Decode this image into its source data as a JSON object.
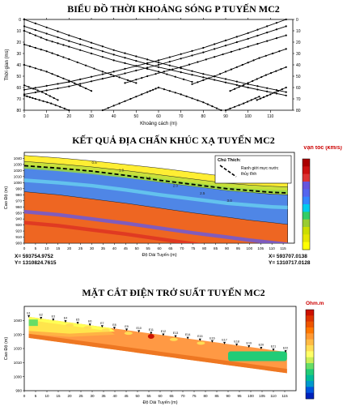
{
  "titles": {
    "travel_time": "BIỂU ĐỒ THỜI KHOẢNG SÓNG P TUYẾN MC2",
    "refraction": "KẾT QUẢ ĐỊA CHẤN KHÚC XẠ TUYẾN MC2",
    "resistivity": "MẶT CẮT ĐIỆN TRỞ SUẤT TUYẾN MC2"
  },
  "chart_data": [
    {
      "type": "line",
      "title": "BIỂU ĐỒ THỜI KHOẢNG SÓNG P TUYẾN MC2",
      "xlabel": "Khoảng cách (m)",
      "ylabel": "Thời gian (ms)",
      "xlim": [
        0,
        120
      ],
      "ylim": [
        0,
        80
      ],
      "y_reversed": true,
      "xticks": [
        "0",
        "10",
        "20",
        "30",
        "40",
        "50",
        "60",
        "70",
        "80",
        "90",
        "100",
        "110"
      ],
      "yticks": [
        "0",
        "10",
        "20",
        "30",
        "40",
        "50",
        "60",
        "70",
        "80"
      ],
      "series": [
        {
          "x": [
            0,
            20,
            40,
            60,
            80,
            100,
            117
          ],
          "y": [
            0,
            14,
            27,
            38,
            48,
            57,
            64
          ]
        },
        {
          "x": [
            0,
            20,
            40,
            60,
            80,
            100,
            117
          ],
          "y": [
            6,
            19,
            31,
            42,
            51,
            60,
            67
          ]
        },
        {
          "x": [
            0,
            10,
            20,
            40,
            60,
            75
          ],
          "y": [
            10,
            18,
            24,
            36,
            46,
            55
          ]
        },
        {
          "x": [
            0,
            10,
            20,
            35,
            50
          ],
          "y": [
            22,
            28,
            35,
            46,
            56
          ]
        },
        {
          "x": [
            0,
            10,
            20,
            30
          ],
          "y": [
            40,
            46,
            54,
            63
          ]
        },
        {
          "x": [
            0,
            8,
            15
          ],
          "y": [
            58,
            64,
            71
          ]
        },
        {
          "x": [
            117,
            100,
            80,
            60,
            40,
            20,
            0
          ],
          "y": [
            0,
            12,
            25,
            36,
            46,
            55,
            62
          ]
        },
        {
          "x": [
            117,
            100,
            80,
            60,
            40,
            20,
            0
          ],
          "y": [
            6,
            17,
            29,
            40,
            50,
            59,
            66
          ]
        },
        {
          "x": [
            117,
            100,
            85,
            70,
            55,
            45
          ],
          "y": [
            14,
            24,
            33,
            42,
            50,
            56
          ]
        },
        {
          "x": [
            117,
            105,
            95,
            85,
            75
          ],
          "y": [
            26,
            34,
            42,
            50,
            57
          ]
        },
        {
          "x": [
            117,
            108,
            100,
            92
          ],
          "y": [
            42,
            49,
            56,
            63
          ]
        },
        {
          "x": [
            117,
            110,
            104
          ],
          "y": [
            60,
            66,
            71
          ]
        },
        {
          "x": [
            20,
            12,
            5,
            0
          ],
          "y": [
            80,
            74,
            70,
            67
          ]
        },
        {
          "x": [
            35,
            45,
            55,
            60
          ],
          "y": [
            80,
            72,
            64,
            60
          ]
        },
        {
          "x": [
            60,
            70,
            80,
            88
          ],
          "y": [
            60,
            66,
            73,
            80
          ]
        },
        {
          "x": [
            90,
            98,
            105
          ],
          "y": [
            80,
            74,
            68
          ]
        }
      ]
    },
    {
      "type": "area",
      "title": "KẾT QUẢ ĐỊA CHẤN KHÚC XẠ TUYẾN MC2",
      "xlabel": "Độ Dài Tuyến (m)",
      "ylabel": "Cao Độ (m)",
      "xlim": [
        0,
        120
      ],
      "ylim": [
        900,
        1050
      ],
      "xticks": [
        "0",
        "5",
        "10",
        "15",
        "20",
        "25",
        "30",
        "35",
        "40",
        "45",
        "50",
        "55",
        "60",
        "65",
        "70",
        "75",
        "80",
        "85",
        "90",
        "95",
        "100",
        "105",
        "110",
        "115"
      ],
      "yticks": [
        "900",
        "910",
        "920",
        "930",
        "940",
        "950",
        "960",
        "970",
        "980",
        "990",
        "1000",
        "1010",
        "1020",
        "1030",
        "1040"
      ],
      "legend_title": "Vận tốc (km/s)",
      "legend_note_title": "Chú Thích:",
      "legend_note": "Ranh giới mực nước thủy tĩnh",
      "contour_labels": [
        "0.5",
        "1.0",
        "1.5",
        "2.0",
        "2.5",
        "3.0"
      ],
      "colorbar": [
        "#ffff00",
        "#e6e600",
        "#ccdd00",
        "#99cc33",
        "#33cc66",
        "#00ccee",
        "#3388ff",
        "#5566ee",
        "#6655dd",
        "#dd3333",
        "#cc1111",
        "#aa0000"
      ],
      "layers": [
        {
          "name": "0.5",
          "top": [
            1045,
            1041,
            1036,
            1030,
            1024,
            1017,
            1010,
            1006,
            1004,
            1003
          ],
          "x": [
            0,
            15,
            30,
            45,
            60,
            75,
            90,
            100,
            110,
            117
          ]
        },
        {
          "name": "1.0",
          "top": [
            1035,
            1031,
            1026,
            1020,
            1013,
            1006,
            999,
            996,
            994,
            993
          ],
          "x": [
            0,
            15,
            30,
            45,
            60,
            75,
            90,
            100,
            110,
            117
          ]
        },
        {
          "name": "2.0",
          "top": [
            1025,
            1021,
            1016,
            1009,
            1001,
            994,
            987,
            984,
            981,
            980
          ],
          "x": [
            0,
            15,
            30,
            45,
            60,
            75,
            90,
            100,
            110,
            117
          ]
        },
        {
          "name": "3.0",
          "top": [
            985,
            980,
            973,
            966,
            958,
            950,
            943,
            938,
            934,
            931
          ],
          "x": [
            0,
            15,
            30,
            45,
            60,
            75,
            90,
            100,
            110,
            117
          ]
        }
      ],
      "water_table": {
        "x": [
          0,
          15,
          30,
          45,
          60,
          75,
          90,
          100,
          110,
          117
        ],
        "y": [
          1028,
          1024,
          1019,
          1012,
          1004,
          997,
          990,
          987,
          984,
          983
        ]
      },
      "coords": {
        "left": [
          "X= 593754.9752",
          "Y= 1310824.7615"
        ],
        "right": [
          "X= 593707.0138",
          "Y= 1310717.0128"
        ]
      }
    },
    {
      "type": "heatmap",
      "title": "MẶT CẮT ĐIỆN TRỞ SUẤT TUYẾN MC2",
      "xlabel": "Độ Dài Tuyến (m)",
      "ylabel": "Cao Độ (m)",
      "xlim": [
        0,
        120
      ],
      "ylim": [
        990,
        1050
      ],
      "xticks": [
        "0",
        "5",
        "10",
        "15",
        "20",
        "25",
        "30",
        "35",
        "40",
        "45",
        "50",
        "55",
        "60",
        "65",
        "70",
        "75",
        "80",
        "85",
        "90",
        "95",
        "100",
        "105",
        "110",
        "115"
      ],
      "yticks": [
        "990",
        "1000",
        "1010",
        "1020",
        "1030",
        "1040"
      ],
      "legend_title": "Ohm.m",
      "colorbar": [
        "#cc1100",
        "#dd3300",
        "#ee5500",
        "#ff7700",
        "#ff9933",
        "#ffbb44",
        "#ffdd55",
        "#ffff66",
        "#ccee55",
        "#66dd66",
        "#22cc77",
        "#00bb99",
        "#0099cc",
        "#0055dd",
        "#0022bb"
      ],
      "electrodes": [
        "E1",
        "E2",
        "E3",
        "E4",
        "E5",
        "E6",
        "E7",
        "E8",
        "E9",
        "E10",
        "E11",
        "E12",
        "E13",
        "E14",
        "E15",
        "E16",
        "E17",
        "E18",
        "E19",
        "E20",
        "E21",
        "E22"
      ]
    }
  ]
}
